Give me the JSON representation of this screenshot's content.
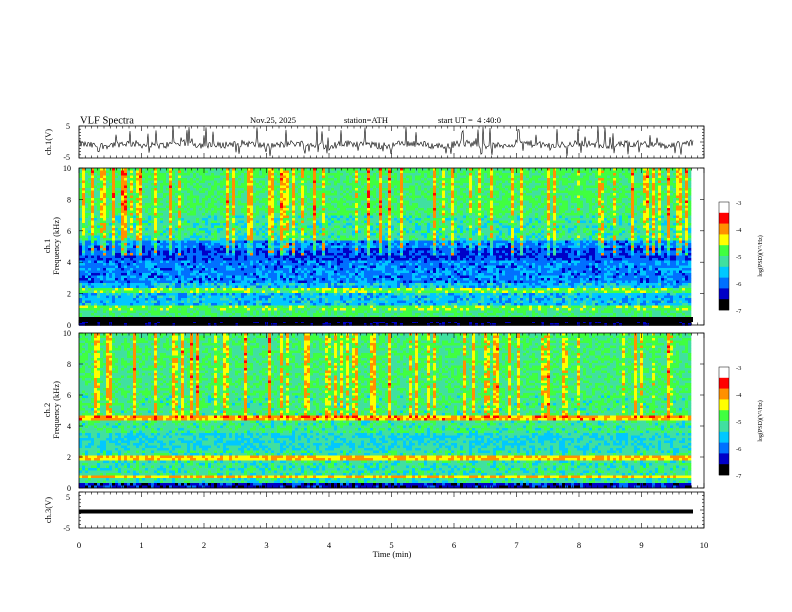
{
  "header": {
    "title": "VLF Spectra",
    "date": "Nov.25, 2025",
    "station": "station=ATH",
    "start": "start UT =  4 :40:0"
  },
  "chart_data": [
    {
      "type": "line",
      "name": "ch1-waveform",
      "ylabel": "ch.1(V)",
      "ylim": [
        -5,
        5
      ],
      "yticks": [
        "5",
        "-5"
      ],
      "xlim": [
        0,
        10
      ],
      "note": "noisy waveform centred near -0.8 V with spikes to +5 V"
    },
    {
      "type": "heatmap",
      "name": "ch1-spectrogram",
      "ylabel": "ch.1\nFrequency (kHz)",
      "ylabel_channel": "ch.1",
      "ylabel_axis": "Frequency (kHz)",
      "ylim": [
        0,
        10
      ],
      "yticks": [
        "0",
        "2",
        "4",
        "6",
        "8",
        "10"
      ],
      "xlim": [
        0,
        9.8
      ],
      "colorbar": {
        "label": "log(PSD)(V²/Hz)",
        "range": [
          -7,
          -3
        ],
        "ticks": [
          "-3",
          "-4",
          "-5",
          "-6",
          "-7"
        ]
      }
    },
    {
      "type": "heatmap",
      "name": "ch2-spectrogram",
      "ylabel_channel": "ch.2",
      "ylabel_axis": "Frequency (kHz)",
      "ylim": [
        0,
        10
      ],
      "yticks": [
        "0",
        "2",
        "4",
        "6",
        "8",
        "10"
      ],
      "xlim": [
        0,
        9.8
      ],
      "colorbar": {
        "label": "log(PSD)(V²/Hz)",
        "range": [
          -7,
          -3
        ],
        "ticks": [
          "-3",
          "-4",
          "-5",
          "-6",
          "-7"
        ]
      }
    },
    {
      "type": "line",
      "name": "ch3-waveform",
      "ylabel": "ch.3(V)",
      "ylim": [
        -5,
        5
      ],
      "yticks": [
        "5",
        "-5"
      ],
      "note": "flat thick trace near -1.2 V"
    }
  ],
  "xaxis": {
    "label": "Time (min)",
    "ticks": [
      "0",
      "1",
      "2",
      "3",
      "4",
      "5",
      "6",
      "7",
      "8",
      "9",
      "10"
    ]
  },
  "colors": {
    "scale": [
      "#000000",
      "#0000c8",
      "#0070ff",
      "#00c8ff",
      "#40e0a0",
      "#40ff40",
      "#ffff00",
      "#ff9000",
      "#ff0000",
      "#ffffff"
    ]
  }
}
